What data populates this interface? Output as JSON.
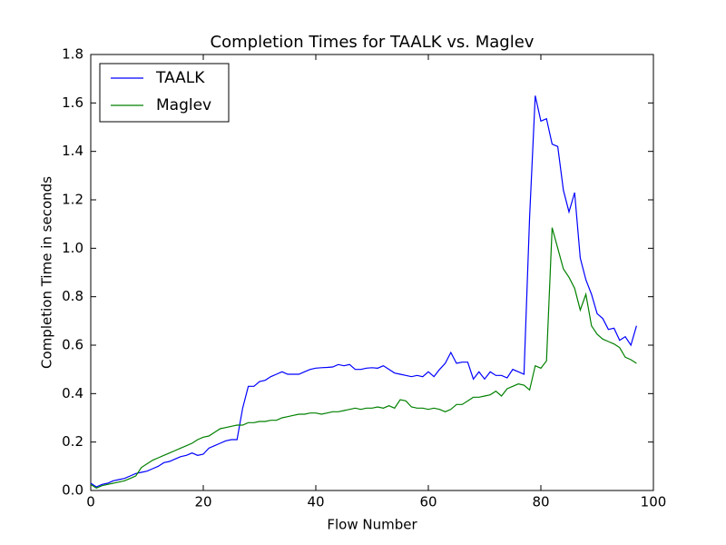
{
  "chart_data": {
    "type": "line",
    "title": "Completion Times for TAALK vs. Maglev",
    "xlabel": "Flow Number",
    "ylabel": "Completion Time in seconds",
    "x": [
      0,
      1,
      2,
      3,
      4,
      5,
      6,
      7,
      8,
      9,
      10,
      11,
      12,
      13,
      14,
      15,
      16,
      17,
      18,
      19,
      20,
      21,
      22,
      23,
      24,
      25,
      26,
      27,
      28,
      29,
      30,
      31,
      32,
      33,
      34,
      35,
      36,
      37,
      38,
      39,
      40,
      41,
      42,
      43,
      44,
      45,
      46,
      47,
      48,
      49,
      50,
      51,
      52,
      53,
      54,
      55,
      56,
      57,
      58,
      59,
      60,
      61,
      62,
      63,
      64,
      65,
      66,
      67,
      68,
      69,
      70,
      71,
      72,
      73,
      74,
      75,
      76,
      77,
      78,
      79,
      80,
      81,
      82,
      83,
      84,
      85,
      86,
      87,
      88,
      89,
      90,
      91,
      92,
      93,
      94,
      95,
      96,
      97
    ],
    "series": [
      {
        "name": "TAALK",
        "color": "#0000ff",
        "values": [
          0.03,
          0.015,
          0.025,
          0.03,
          0.04,
          0.045,
          0.05,
          0.06,
          0.07,
          0.075,
          0.08,
          0.09,
          0.1,
          0.115,
          0.12,
          0.13,
          0.14,
          0.145,
          0.155,
          0.145,
          0.15,
          0.175,
          0.185,
          0.195,
          0.205,
          0.21,
          0.21,
          0.34,
          0.43,
          0.43,
          0.45,
          0.455,
          0.47,
          0.48,
          0.49,
          0.48,
          0.48,
          0.48,
          0.49,
          0.5,
          0.505,
          0.507,
          0.508,
          0.51,
          0.52,
          0.515,
          0.52,
          0.5,
          0.5,
          0.505,
          0.507,
          0.505,
          0.515,
          0.5,
          0.485,
          0.48,
          0.475,
          0.47,
          0.475,
          0.47,
          0.49,
          0.47,
          0.5,
          0.525,
          0.57,
          0.525,
          0.53,
          0.53,
          0.46,
          0.49,
          0.46,
          0.49,
          0.475,
          0.475,
          0.465,
          0.5,
          0.49,
          0.48,
          1.13,
          1.63,
          1.525,
          1.535,
          1.43,
          1.42,
          1.24,
          1.15,
          1.23,
          0.96,
          0.87,
          0.81,
          0.73,
          0.71,
          0.665,
          0.67,
          0.62,
          0.635,
          0.6,
          0.68
        ]
      },
      {
        "name": "Maglev",
        "color": "#008000",
        "values": [
          0.025,
          0.01,
          0.02,
          0.025,
          0.03,
          0.035,
          0.04,
          0.05,
          0.06,
          0.095,
          0.11,
          0.125,
          0.135,
          0.145,
          0.155,
          0.165,
          0.175,
          0.185,
          0.195,
          0.21,
          0.22,
          0.225,
          0.24,
          0.255,
          0.26,
          0.265,
          0.27,
          0.27,
          0.28,
          0.28,
          0.285,
          0.285,
          0.29,
          0.29,
          0.3,
          0.305,
          0.31,
          0.315,
          0.315,
          0.32,
          0.32,
          0.315,
          0.32,
          0.325,
          0.325,
          0.33,
          0.335,
          0.34,
          0.335,
          0.34,
          0.34,
          0.345,
          0.34,
          0.35,
          0.34,
          0.375,
          0.37,
          0.345,
          0.34,
          0.34,
          0.335,
          0.34,
          0.335,
          0.325,
          0.335,
          0.355,
          0.355,
          0.37,
          0.385,
          0.385,
          0.39,
          0.395,
          0.41,
          0.39,
          0.42,
          0.43,
          0.44,
          0.435,
          0.415,
          0.515,
          0.505,
          0.535,
          1.085,
          1.0,
          0.915,
          0.88,
          0.835,
          0.745,
          0.81,
          0.68,
          0.645,
          0.625,
          0.615,
          0.605,
          0.59,
          0.55,
          0.54,
          0.525
        ]
      }
    ],
    "xlim": [
      0,
      100
    ],
    "xticks": [
      0,
      20,
      40,
      60,
      80,
      100
    ],
    "ylim": [
      0,
      1.8
    ],
    "yticks": [
      {
        "value": 0,
        "label": "0.0"
      },
      {
        "value": 0.2,
        "label": "0.2"
      },
      {
        "value": 0.4,
        "label": "0.4"
      },
      {
        "value": 0.6,
        "label": "0.6"
      },
      {
        "value": 0.8,
        "label": "0.8"
      },
      {
        "value": 1.0,
        "label": "1.0"
      },
      {
        "value": 1.2,
        "label": "1.2"
      },
      {
        "value": 1.4,
        "label": "1.4"
      },
      {
        "value": 1.6,
        "label": "1.6"
      },
      {
        "value": 1.8,
        "label": "1.8"
      }
    ],
    "legend": "upper left",
    "grid": false
  }
}
